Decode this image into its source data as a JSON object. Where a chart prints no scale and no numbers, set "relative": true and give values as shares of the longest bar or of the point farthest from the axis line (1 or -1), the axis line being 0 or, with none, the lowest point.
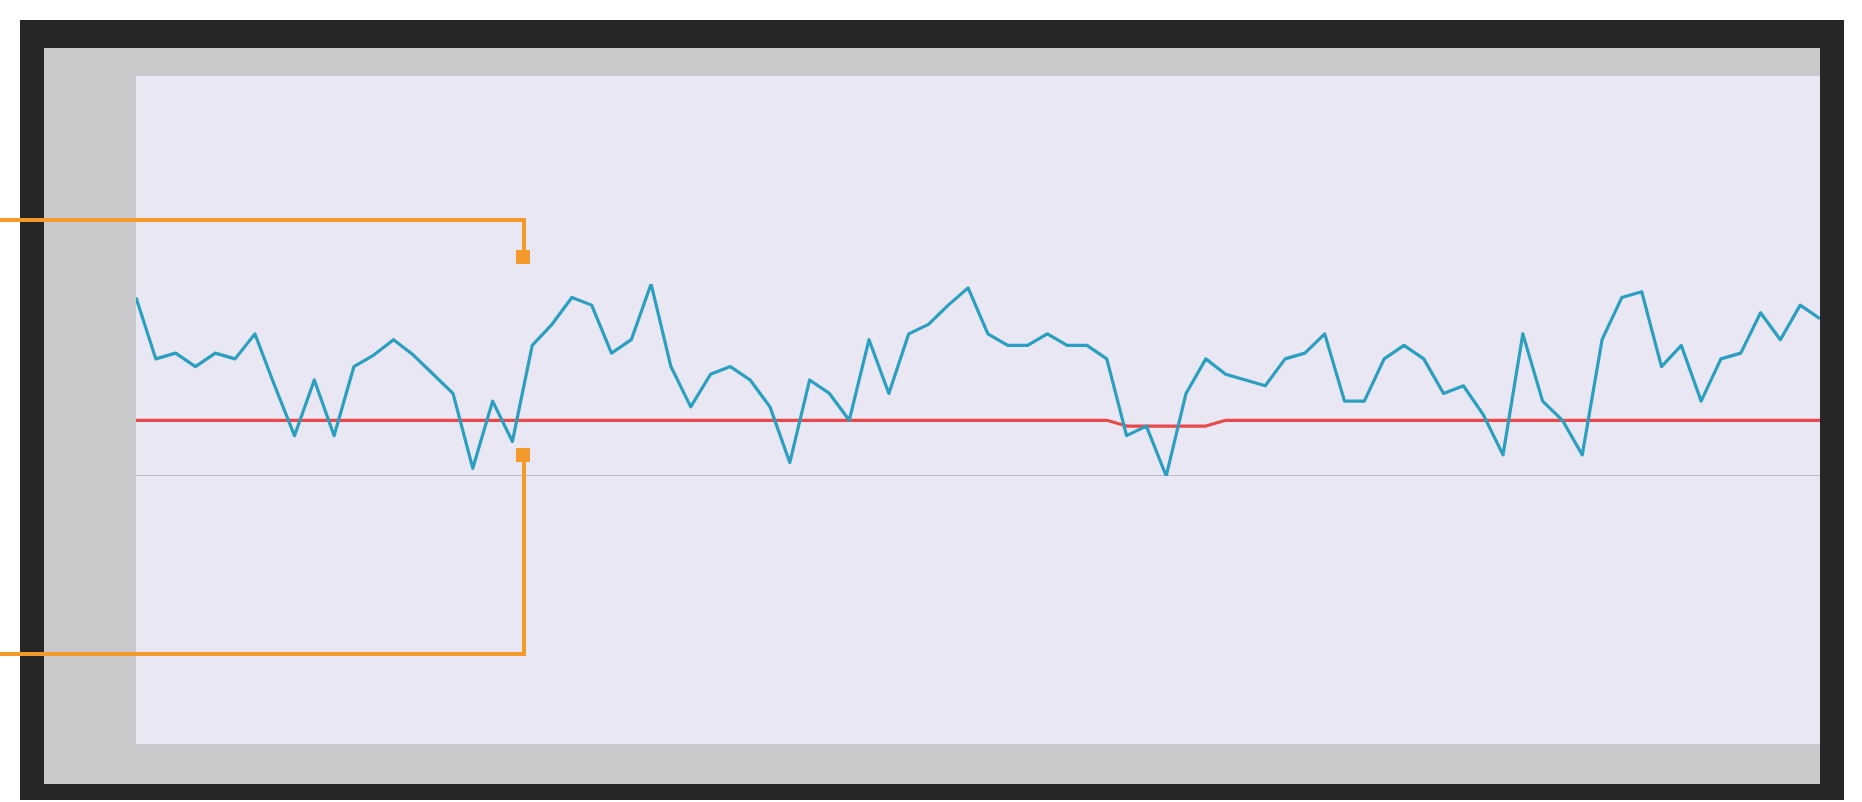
{
  "chart_data": {
    "type": "line",
    "relative": true,
    "categories": [
      null,
      null,
      null,
      null,
      null,
      null,
      null,
      null,
      null,
      null,
      null,
      null,
      null,
      null,
      null,
      null,
      null,
      null,
      null,
      null,
      null,
      null,
      null,
      null,
      null,
      null,
      null,
      null,
      null,
      null,
      null,
      null,
      null,
      null,
      null,
      null,
      null,
      null,
      null,
      null,
      null,
      null,
      null,
      null,
      null,
      null,
      null,
      null,
      null,
      null,
      null,
      null,
      null,
      null,
      null,
      null,
      null,
      null,
      null,
      null,
      null,
      null,
      null,
      null,
      null,
      null,
      null,
      null,
      null,
      null,
      null,
      null,
      null,
      null,
      null,
      null,
      null,
      null,
      null,
      null,
      null,
      null,
      null,
      null,
      null,
      null
    ],
    "series": [
      {
        "color": "#2a9fbf",
        "values": [
          0.93,
          0.61,
          0.64,
          0.57,
          0.64,
          0.61,
          0.74,
          0.47,
          0.21,
          0.5,
          0.21,
          0.57,
          0.63,
          0.71,
          0.63,
          0.53,
          0.43,
          0.04,
          0.39,
          0.18,
          0.68,
          0.79,
          0.93,
          0.89,
          0.64,
          0.71,
          1,
          0.57,
          0.36,
          0.53,
          0.57,
          0.5,
          0.36,
          0.07,
          0.5,
          0.43,
          0.29,
          0.71,
          0.43,
          0.74,
          0.79,
          0.89,
          0.98,
          0.74,
          0.68,
          0.68,
          0.74,
          0.68,
          0.68,
          0.61,
          0.21,
          0.26,
          0,
          0.43,
          0.61,
          0.53,
          0.5,
          0.47,
          0.61,
          0.64,
          0.74,
          0.39,
          0.39,
          0.61,
          0.68,
          0.61,
          0.43,
          0.47,
          0.32,
          0.11,
          0.74,
          0.39,
          0.29,
          0.11,
          0.71,
          0.93,
          0.96,
          0.57,
          0.68,
          0.39,
          0.61,
          0.64,
          0.85,
          0.71,
          0.89,
          0.82
        ]
      },
      {
        "color": "#e84a4a",
        "values": [
          0.29,
          0.29,
          0.29,
          0.29,
          0.29,
          0.29,
          0.29,
          0.29,
          0.29,
          0.29,
          0.29,
          0.29,
          0.29,
          0.29,
          0.29,
          0.29,
          0.29,
          0.29,
          0.29,
          0.29,
          0.29,
          0.29,
          0.29,
          0.29,
          0.29,
          0.29,
          0.29,
          0.29,
          0.29,
          0.29,
          0.29,
          0.29,
          0.29,
          0.29,
          0.29,
          0.29,
          0.29,
          0.29,
          0.29,
          0.29,
          0.29,
          0.29,
          0.29,
          0.29,
          0.29,
          0.29,
          0.29,
          0.29,
          0.29,
          0.29,
          0.26,
          0.26,
          0.26,
          0.26,
          0.26,
          0.29,
          0.29,
          0.29,
          0.29,
          0.29,
          0.29,
          0.29,
          0.29,
          0.29,
          0.29,
          0.29,
          0.29,
          0.29,
          0.29,
          0.29,
          0.29,
          0.29,
          0.29,
          0.29,
          0.29,
          0.29,
          0.29,
          0.29,
          0.29,
          0.29,
          0.29,
          0.29,
          0.29,
          0.29,
          0.29,
          0.29
        ]
      }
    ]
  }
}
